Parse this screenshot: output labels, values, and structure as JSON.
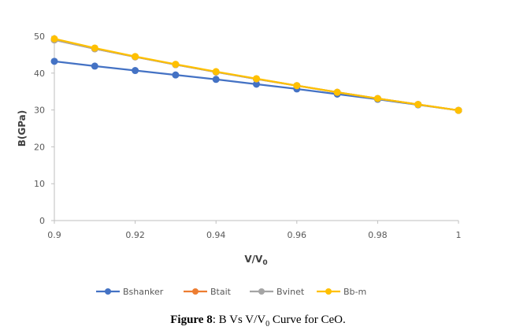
{
  "chart_data": {
    "type": "line",
    "title": "",
    "xlabel": "V/V",
    "xlabel_sub": "0",
    "ylabel": "B(GPa)",
    "xlim": [
      0.9,
      1.0
    ],
    "ylim": [
      0,
      50
    ],
    "xticks": [
      "0.9",
      "0.92",
      "0.94",
      "0.96",
      "0.98",
      "1"
    ],
    "xtick_values": [
      0.9,
      0.92,
      0.94,
      0.96,
      0.98,
      1.0
    ],
    "yticks": [
      "0",
      "10",
      "20",
      "30",
      "40",
      "50"
    ],
    "ytick_values": [
      0,
      10,
      20,
      30,
      40,
      50
    ],
    "grid": false,
    "legend_position": "bottom",
    "x": [
      0.9,
      0.91,
      0.92,
      0.93,
      0.94,
      0.95,
      0.96,
      0.97,
      0.98,
      0.99,
      1.0
    ],
    "series": [
      {
        "name": "Bshanker",
        "color": "#4472C4",
        "values": [
          43.2,
          41.9,
          40.7,
          39.5,
          38.3,
          37.0,
          35.7,
          34.3,
          32.9,
          31.4,
          29.9
        ]
      },
      {
        "name": "Btait",
        "color": "#ED7D31",
        "values": [
          49.0,
          46.6,
          44.4,
          42.3,
          40.3,
          38.4,
          36.6,
          34.8,
          33.1,
          31.5,
          29.9
        ]
      },
      {
        "name": "Bvinet",
        "color": "#A5A5A5",
        "values": [
          49.0,
          46.6,
          44.4,
          42.3,
          40.3,
          38.4,
          36.6,
          34.8,
          33.1,
          31.5,
          29.9
        ]
      },
      {
        "name": "Bb-m",
        "color": "#FFC000",
        "values": [
          49.3,
          46.8,
          44.5,
          42.4,
          40.4,
          38.5,
          36.6,
          34.8,
          33.1,
          31.5,
          29.9
        ]
      }
    ]
  },
  "caption": {
    "label": "Figure 8",
    "sep": ": ",
    "text_before_sub": "B Vs V/V",
    "sub": "0",
    "text_after_sub": " Curve for CeO."
  }
}
